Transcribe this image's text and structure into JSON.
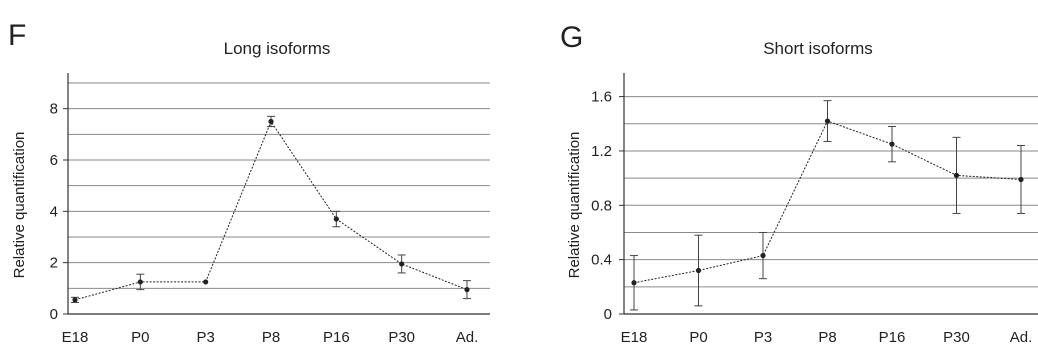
{
  "panels": [
    {
      "letter": "F"
    },
    {
      "letter": "G"
    }
  ],
  "chart_data": [
    {
      "type": "line",
      "title": "Long isoforms",
      "xlabel": "",
      "ylabel": "Relative quantification",
      "categories": [
        "E18",
        "P0",
        "P3",
        "P8",
        "P16",
        "P30",
        "Ad."
      ],
      "ylim": [
        0,
        9
      ],
      "yticks": [
        "0",
        "2",
        "4",
        "6",
        "8"
      ],
      "ytick_values": [
        0,
        2,
        4,
        6,
        8
      ],
      "grid": true,
      "series": [
        {
          "values": [
            0.55,
            1.25,
            1.25,
            7.5,
            3.7,
            1.95,
            0.95
          ],
          "errors": [
            0.1,
            0.3,
            0.0,
            0.2,
            0.3,
            0.35,
            0.35
          ],
          "color": "#222222"
        }
      ]
    },
    {
      "type": "line",
      "title": "Short isoforms",
      "xlabel": "",
      "ylabel": "Relative quantification",
      "categories": [
        "E18",
        "P0",
        "P3",
        "P8",
        "P16",
        "P30",
        "Ad."
      ],
      "ylim": [
        0,
        1.7
      ],
      "yticks": [
        "0",
        "0.4",
        "0.8",
        "1.2",
        "1.6"
      ],
      "ytick_values": [
        0,
        0.4,
        0.8,
        1.2,
        1.6
      ],
      "grid": true,
      "series": [
        {
          "values": [
            0.23,
            0.32,
            0.43,
            1.42,
            1.25,
            1.02,
            0.99
          ],
          "errors": [
            0.2,
            0.26,
            0.17,
            0.15,
            0.13,
            0.28,
            0.25
          ],
          "color": "#222222"
        }
      ]
    }
  ]
}
